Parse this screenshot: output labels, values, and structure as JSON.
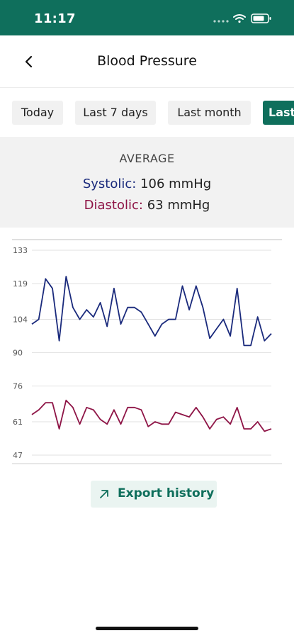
{
  "status": {
    "time": "11:17"
  },
  "nav": {
    "title": "Blood Pressure"
  },
  "tabs": [
    {
      "label": "Today"
    },
    {
      "label": "Last 7 days"
    },
    {
      "label": "Last month"
    },
    {
      "label": "Last year"
    }
  ],
  "average": {
    "label": "AVERAGE",
    "systolic_label": "Systolic:",
    "systolic_value": "106 mmHg",
    "diastolic_label": "Diastolic:",
    "diastolic_value": "63 mmHg"
  },
  "colors": {
    "brand": "#0f6f5c",
    "systolic": "#1a2a7c",
    "diastolic": "#8e1446"
  },
  "chart_data": {
    "type": "line",
    "ylim": [
      47,
      133
    ],
    "yticks": [
      133,
      119,
      104,
      90,
      76,
      61,
      47
    ],
    "grid": true,
    "series": [
      {
        "name": "Systolic",
        "values": [
          102,
          104,
          121,
          117,
          95,
          122,
          109,
          104,
          108,
          105,
          111,
          101,
          117,
          102,
          109,
          109,
          107,
          102,
          97,
          102,
          104,
          104,
          118,
          108,
          118,
          109,
          96,
          100,
          104,
          97,
          117,
          93,
          93,
          105,
          95,
          98
        ]
      },
      {
        "name": "Diastolic",
        "values": [
          64,
          66,
          69,
          69,
          58,
          70,
          67,
          60,
          67,
          66,
          62,
          60,
          66,
          60,
          67,
          67,
          66,
          59,
          61,
          60,
          60,
          65,
          64,
          63,
          67,
          63,
          58,
          62,
          63,
          60,
          67,
          58,
          58,
          61,
          57,
          58
        ]
      }
    ]
  },
  "export": {
    "label": "Export history",
    "icon": "arrow-up-right-icon"
  }
}
